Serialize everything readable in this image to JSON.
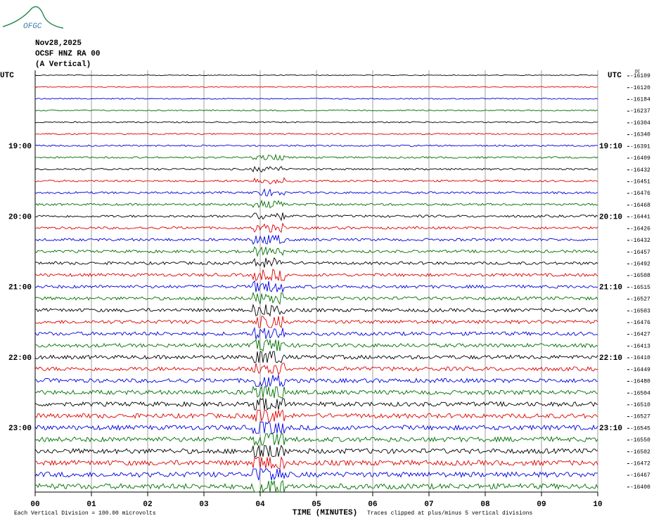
{
  "chart_data": {
    "type": "helicorder",
    "logo": "OFGC",
    "title_lines": [
      "Nov28,2025",
      "OCSF HNZ RA 00",
      "(A Vertical)"
    ],
    "timezone": "UTC",
    "offset_label": "DC",
    "x_label": "TIME (MINUTES)",
    "scale_note": "Each Vertical Division =  100.00 microvolts",
    "clip_note": "Traces clipped at plus/minus 5 vertical divisions",
    "xlim": [
      0,
      10
    ],
    "xticks": [
      {
        "value": 0,
        "label": "00"
      },
      {
        "value": 1,
        "label": "01"
      },
      {
        "value": 2,
        "label": "02"
      },
      {
        "value": 3,
        "label": "03"
      },
      {
        "value": 4,
        "label": "04"
      },
      {
        "value": 5,
        "label": "05"
      },
      {
        "value": 6,
        "label": "06"
      },
      {
        "value": 7,
        "label": "07"
      },
      {
        "value": 8,
        "label": "08"
      },
      {
        "value": 9,
        "label": "09"
      },
      {
        "value": 10,
        "label": "10"
      }
    ],
    "colors": [
      "#000000",
      "#e00000",
      "#0000e0",
      "#007000"
    ],
    "trace_offsets": [
      -16109,
      -16120,
      -16184,
      -16237,
      -16304,
      -16340,
      -16391,
      -16409,
      -16432,
      -16451,
      -16476,
      -16468,
      -16441,
      -16426,
      -16432,
      -16457,
      -16492,
      -16508,
      -16515,
      -16527,
      -16503,
      -16476,
      -16427,
      -16413,
      -16410,
      -16449,
      -16480,
      -16504,
      -16510,
      -16527,
      -16545,
      -16550,
      -16502,
      -16472,
      -16467,
      -16400
    ],
    "left_labels": [
      null,
      null,
      null,
      null,
      null,
      null,
      "19:00",
      null,
      null,
      null,
      null,
      null,
      "20:00",
      null,
      null,
      null,
      null,
      null,
      "21:00",
      null,
      null,
      null,
      null,
      null,
      "22:00",
      null,
      null,
      null,
      null,
      null,
      "23:00",
      null,
      null,
      null,
      null,
      null
    ],
    "right_labels": [
      null,
      null,
      null,
      null,
      null,
      null,
      "19:10",
      null,
      null,
      null,
      null,
      null,
      "20:10",
      null,
      null,
      null,
      null,
      null,
      "21:10",
      null,
      null,
      null,
      null,
      null,
      "22:10",
      null,
      null,
      null,
      null,
      null,
      "23:10",
      null,
      null,
      null,
      null,
      null
    ]
  }
}
